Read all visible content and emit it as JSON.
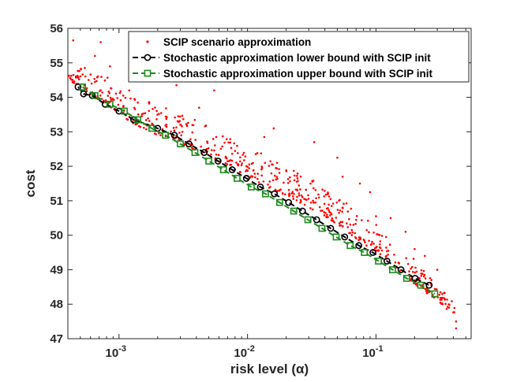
{
  "chart_data": {
    "type": "scatter",
    "title": "",
    "xlabel": "risk level (α)",
    "ylabel": "cost",
    "xscale": "log",
    "xlim": [
      0.0004,
      0.55
    ],
    "ylim": [
      47,
      56
    ],
    "grid": false,
    "legend_position": "top-right",
    "x_ticks": [
      {
        "value": 0.001,
        "base": "10",
        "exp": "-3"
      },
      {
        "value": 0.01,
        "base": "10",
        "exp": "-2"
      },
      {
        "value": 0.1,
        "base": "10",
        "exp": "-1"
      }
    ],
    "y_ticks": [
      47,
      48,
      49,
      50,
      51,
      52,
      53,
      54,
      55,
      56
    ],
    "colors": {
      "scatter": "#ff0000",
      "lower": "#000000",
      "upper": "#1e8a1e"
    },
    "series": [
      {
        "name": "SCIP scenario approximation",
        "kind": "scatter",
        "marker": "point",
        "trend": {
          "base": [
            [
              0.0004,
              54.55
            ],
            [
              0.0005,
              54.35
            ],
            [
              0.0006,
              54.1
            ],
            [
              0.0008,
              53.85
            ],
            [
              0.001,
              53.55
            ],
            [
              0.0012,
              53.35
            ],
            [
              0.0016,
              53.1
            ],
            [
              0.002,
              52.95
            ],
            [
              0.0025,
              52.85
            ],
            [
              0.003,
              52.7
            ],
            [
              0.004,
              52.5
            ],
            [
              0.005,
              52.3
            ],
            [
              0.006,
              52.15
            ],
            [
              0.008,
              51.95
            ],
            [
              0.01,
              51.75
            ],
            [
              0.015,
              51.4
            ],
            [
              0.02,
              51.2
            ],
            [
              0.03,
              50.85
            ],
            [
              0.04,
              50.6
            ],
            [
              0.05,
              50.35
            ],
            [
              0.07,
              49.95
            ],
            [
              0.1,
              49.55
            ],
            [
              0.13,
              49.2
            ],
            [
              0.17,
              48.85
            ],
            [
              0.22,
              48.5
            ],
            [
              0.3,
              48.15
            ],
            [
              0.42,
              47.65
            ]
          ],
          "spread": [
            [
              0.0004,
              0.4
            ],
            [
              0.0006,
              0.75
            ],
            [
              0.001,
              0.85
            ],
            [
              0.002,
              0.9
            ],
            [
              0.005,
              0.9
            ],
            [
              0.01,
              0.9
            ],
            [
              0.03,
              0.85
            ],
            [
              0.1,
              0.8
            ],
            [
              0.2,
              0.7
            ],
            [
              0.3,
              0.5
            ],
            [
              0.42,
              0.35
            ]
          ]
        },
        "num_points": 600,
        "outliers": [
          [
            0.00044,
            55.65
          ],
          [
            0.00072,
            55.6
          ],
          [
            0.00065,
            55.2
          ],
          [
            0.00085,
            54.9
          ],
          [
            0.00125,
            54.85
          ],
          [
            0.0012,
            54.2
          ],
          [
            0.0024,
            54.5
          ],
          [
            0.0028,
            54.35
          ],
          [
            0.0055,
            54.2
          ],
          [
            0.0042,
            53.7
          ],
          [
            0.016,
            53.1
          ],
          [
            0.0135,
            52.85
          ],
          [
            0.033,
            52.7
          ],
          [
            0.05,
            52.25
          ],
          [
            0.055,
            51.7
          ],
          [
            0.075,
            51.5
          ],
          [
            0.09,
            51.25
          ],
          [
            0.1,
            50.55
          ],
          [
            0.13,
            50.5
          ],
          [
            0.17,
            50.1
          ],
          [
            0.12,
            49.95
          ],
          [
            0.2,
            49.6
          ],
          [
            0.24,
            49.4
          ],
          [
            0.3,
            49.0
          ],
          [
            0.27,
            48.7
          ],
          [
            0.33,
            48.0
          ],
          [
            0.37,
            47.9
          ],
          [
            0.42,
            47.5
          ],
          [
            0.42,
            47.3
          ]
        ]
      },
      {
        "name": "Stochastic approximation lower bound with SCIP init",
        "kind": "line-marker",
        "marker": "circle",
        "line_style": "dashed",
        "x": [
          0.00048,
          0.00053,
          0.00062,
          0.00078,
          0.001,
          0.0013,
          0.002,
          0.0027,
          0.0035,
          0.0046,
          0.0059,
          0.0076,
          0.0098,
          0.0126,
          0.0162,
          0.0209,
          0.0268,
          0.0345,
          0.0444,
          0.0571,
          0.0735,
          0.0946,
          0.1217,
          0.1566,
          0.2014,
          0.2591
        ],
        "y": [
          54.3,
          54.1,
          54.05,
          53.8,
          53.6,
          53.35,
          53.1,
          52.9,
          52.65,
          52.4,
          52.15,
          51.9,
          51.65,
          51.4,
          51.2,
          50.95,
          50.7,
          50.45,
          50.2,
          49.95,
          49.7,
          49.5,
          49.25,
          49.0,
          48.75,
          48.55
        ]
      },
      {
        "name": "Stochastic approximation upper bound with SCIP init",
        "kind": "line-marker",
        "marker": "square",
        "line_style": "dashed",
        "x": [
          0.00052,
          0.00065,
          0.00085,
          0.0011,
          0.0014,
          0.0018,
          0.0023,
          0.003,
          0.0039,
          0.005,
          0.0065,
          0.0083,
          0.0107,
          0.0138,
          0.0178,
          0.0229,
          0.0295,
          0.038,
          0.049,
          0.063,
          0.0812,
          0.1045,
          0.1345,
          0.1731,
          0.2228,
          0.2867
        ],
        "y": [
          54.3,
          54.05,
          53.8,
          53.6,
          53.35,
          53.1,
          52.9,
          52.65,
          52.4,
          52.15,
          51.9,
          51.65,
          51.4,
          51.2,
          50.95,
          50.7,
          50.45,
          50.2,
          49.95,
          49.7,
          49.5,
          49.25,
          49.0,
          48.75,
          48.55,
          48.3
        ]
      }
    ]
  }
}
